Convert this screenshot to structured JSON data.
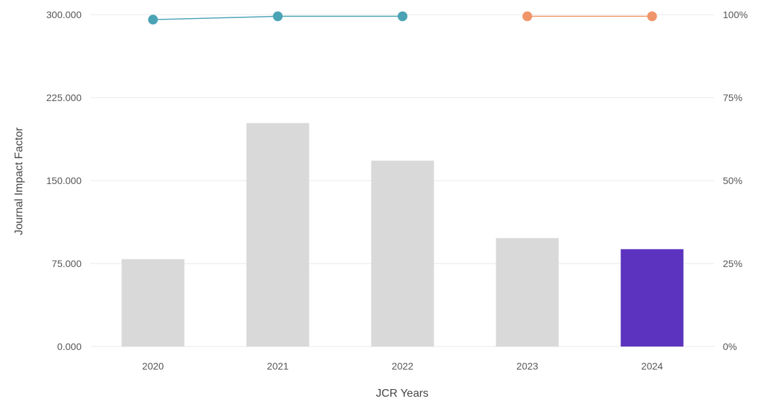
{
  "chart_data": {
    "type": "bar",
    "xlabel": "JCR Years",
    "ylabel": "Journal Impact Factor",
    "categories": [
      "2020",
      "2021",
      "2022",
      "2023",
      "2024"
    ],
    "y_left": {
      "ylim": [
        0,
        300
      ],
      "ticks": [
        0,
        75,
        150,
        225,
        300
      ],
      "tick_labels": [
        "0.000",
        "75.000",
        "150.000",
        "225.000",
        "300.000"
      ]
    },
    "y_right": {
      "ylim": [
        0,
        100
      ],
      "ticks": [
        0,
        25,
        50,
        75,
        100
      ],
      "tick_labels": [
        "0%",
        "25%",
        "50%",
        "75%",
        "100%"
      ]
    },
    "grid": true,
    "series": [
      {
        "kind": "bar",
        "axis": "left",
        "values": [
          79,
          202,
          168,
          98,
          88
        ],
        "colors": [
          "#d9d9d9",
          "#d9d9d9",
          "#d9d9d9",
          "#d9d9d9",
          "#5c33be"
        ]
      },
      {
        "kind": "line",
        "axis": "right",
        "color": "#4aa3b5",
        "x": [
          "2020",
          "2021",
          "2022"
        ],
        "values": [
          98.5,
          99.5,
          99.5
        ]
      },
      {
        "kind": "line",
        "axis": "right",
        "color": "#f0956a",
        "x": [
          "2023",
          "2024"
        ],
        "values": [
          99.5,
          99.5
        ]
      }
    ]
  }
}
